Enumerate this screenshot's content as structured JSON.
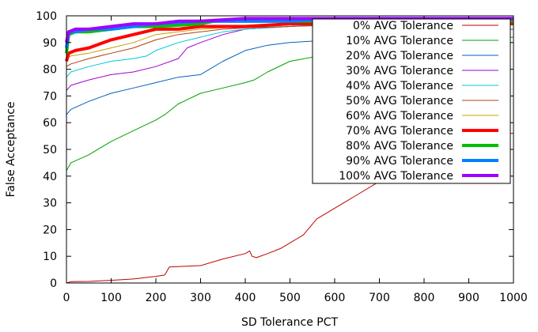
{
  "chart_data": {
    "type": "line",
    "title": "",
    "xlabel": "SD Tolerance PCT",
    "ylabel": "False Acceptance",
    "xlim": [
      0,
      1000
    ],
    "ylim": [
      0,
      100
    ],
    "xticks": [
      0,
      100,
      200,
      300,
      400,
      500,
      600,
      700,
      800,
      900,
      1000
    ],
    "yticks": [
      0,
      10,
      20,
      30,
      40,
      50,
      60,
      70,
      80,
      90,
      100
    ],
    "grid": false,
    "legend_position": "top-right",
    "series": [
      {
        "name": "0% AVG Tolerance",
        "color": "#c00000",
        "thick": false,
        "x": [
          0,
          10,
          50,
          100,
          150,
          200,
          220,
          230,
          300,
          350,
          400,
          410,
          415,
          425,
          450,
          480,
          500,
          530,
          560,
          600,
          650,
          700,
          750,
          800,
          850,
          900,
          950,
          1000
        ],
        "y": [
          0,
          0.5,
          0.6,
          1,
          1.5,
          2.5,
          3,
          6,
          6.5,
          9,
          11,
          12,
          10,
          9.5,
          11,
          13,
          15,
          18,
          24,
          28,
          33,
          38,
          42,
          46,
          50,
          53,
          56,
          56
        ]
      },
      {
        "name": "10% AVG Tolerance",
        "color": "#00a000",
        "thick": false,
        "x": [
          0,
          10,
          50,
          100,
          150,
          200,
          220,
          250,
          300,
          350,
          400,
          420,
          450,
          500,
          600,
          700,
          800,
          900,
          1000
        ],
        "y": [
          42,
          45,
          48,
          53,
          57,
          61,
          63,
          67,
          71,
          73,
          75,
          76,
          79,
          83,
          86,
          88,
          90,
          91,
          92
        ]
      },
      {
        "name": "20% AVG Tolerance",
        "color": "#0060c0",
        "thick": false,
        "x": [
          0,
          10,
          50,
          100,
          150,
          200,
          250,
          300,
          320,
          350,
          400,
          450,
          500,
          600,
          700,
          800,
          900,
          1000
        ],
        "y": [
          63,
          65,
          68,
          71,
          73,
          75,
          77,
          78,
          80,
          83,
          87,
          89,
          90,
          91,
          92,
          93,
          94,
          95
        ]
      },
      {
        "name": "30% AVG Tolerance",
        "color": "#a000d0",
        "thick": false,
        "x": [
          0,
          10,
          50,
          100,
          150,
          200,
          250,
          270,
          300,
          350,
          400,
          500,
          600,
          700,
          800,
          900,
          1000
        ],
        "y": [
          72,
          74,
          76,
          78,
          79,
          81,
          84,
          88,
          90,
          93,
          95,
          96,
          97,
          97,
          98,
          98,
          98
        ]
      },
      {
        "name": "40% AVG Tolerance",
        "color": "#00c8d8",
        "thick": false,
        "x": [
          0,
          10,
          50,
          100,
          150,
          180,
          200,
          250,
          300,
          350,
          400,
          500,
          600,
          700,
          800,
          900,
          1000
        ],
        "y": [
          77,
          79,
          81,
          83,
          84,
          85,
          87,
          90,
          92,
          94,
          95,
          96,
          97,
          97,
          98,
          98,
          98
        ]
      },
      {
        "name": "50% AVG Tolerance",
        "color": "#b04010",
        "thick": false,
        "x": [
          0,
          10,
          50,
          100,
          150,
          200,
          250,
          300,
          350,
          400,
          500,
          600,
          700,
          800,
          900,
          1000
        ],
        "y": [
          81,
          82,
          84,
          86,
          88,
          91,
          93,
          94,
          95,
          95.5,
          96,
          96.5,
          97,
          97,
          97.5,
          97.5
        ]
      },
      {
        "name": "60% AVG Tolerance",
        "color": "#c8a000",
        "thick": false,
        "x": [
          0,
          10,
          50,
          100,
          150,
          200,
          250,
          300,
          350,
          400,
          500,
          600,
          700,
          800,
          900,
          1000
        ],
        "y": [
          84,
          85,
          86,
          88,
          90,
          93,
          94,
          95,
          95.5,
          96,
          96.5,
          97,
          97,
          97.5,
          97.5,
          98
        ]
      },
      {
        "name": "70% AVG Tolerance",
        "color": "#ff0000",
        "thick": true,
        "x": [
          0,
          5,
          20,
          50,
          100,
          150,
          200,
          250,
          300,
          400,
          500,
          600,
          700,
          800,
          900,
          1000
        ],
        "y": [
          83,
          86,
          87,
          88,
          91,
          93,
          95,
          95,
          96,
          96,
          97,
          97,
          97,
          97,
          97,
          97
        ]
      },
      {
        "name": "80% AVG Tolerance",
        "color": "#00c000",
        "thick": true,
        "x": [
          0,
          5,
          20,
          50,
          100,
          150,
          200,
          300,
          330,
          400,
          500,
          600,
          700,
          800,
          900,
          1000
        ],
        "y": [
          86,
          93,
          94,
          94,
          95,
          96,
          96,
          97,
          98,
          98,
          98,
          98,
          98,
          98,
          98,
          98
        ]
      },
      {
        "name": "90% AVG Tolerance",
        "color": "#0080ff",
        "thick": true,
        "x": [
          0,
          5,
          20,
          50,
          100,
          150,
          200,
          300,
          400,
          500,
          600,
          700,
          800,
          900,
          1000
        ],
        "y": [
          88,
          94,
          94,
          95,
          95,
          96,
          97,
          98,
          98,
          98,
          99,
          99,
          99,
          99,
          99
        ]
      },
      {
        "name": "100% AVG Tolerance",
        "color": "#a000ff",
        "thick": true,
        "x": [
          0,
          5,
          20,
          50,
          100,
          150,
          200,
          250,
          300,
          400,
          500,
          600,
          700,
          800,
          900,
          1000
        ],
        "y": [
          90,
          94,
          95,
          95,
          96,
          97,
          97,
          98,
          98,
          99,
          99,
          99,
          99,
          99,
          99,
          99
        ]
      }
    ]
  }
}
